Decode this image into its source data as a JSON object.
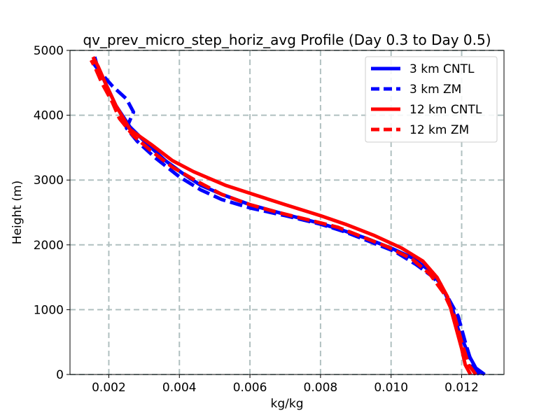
{
  "chart_data": {
    "type": "line",
    "title": "qv_prev_micro_step_horiz_avg Profile (Day 0.3 to Day 0.5)",
    "xlabel": "kg/kg",
    "ylabel": "Height (m)",
    "xlim": [
      0.0009,
      0.0132
    ],
    "ylim": [
      0,
      5000
    ],
    "xticks": [
      0.002,
      0.004,
      0.006,
      0.008,
      0.01,
      0.012
    ],
    "xtick_labels": [
      "0.002",
      "0.004",
      "0.006",
      "0.008",
      "0.010",
      "0.012"
    ],
    "yticks": [
      0,
      1000,
      2000,
      3000,
      4000,
      5000
    ],
    "ytick_labels": [
      "0",
      "1000",
      "2000",
      "3000",
      "4000",
      "5000"
    ],
    "grid": true,
    "legend_position": "top-right",
    "series": [
      {
        "name": "3 km CNTL",
        "color": "#0000ff",
        "dash": "solid",
        "points": [
          [
            0.01265,
            0
          ],
          [
            0.0124,
            100
          ],
          [
            0.0122,
            300
          ],
          [
            0.0119,
            700
          ],
          [
            0.01175,
            1000
          ],
          [
            0.0114,
            1400
          ],
          [
            0.0111,
            1600
          ],
          [
            0.0106,
            1800
          ],
          [
            0.01,
            1950
          ],
          [
            0.0093,
            2100
          ],
          [
            0.0086,
            2230
          ],
          [
            0.008,
            2330
          ],
          [
            0.007,
            2470
          ],
          [
            0.006,
            2620
          ],
          [
            0.0052,
            2780
          ],
          [
            0.0046,
            2920
          ],
          [
            0.0041,
            3100
          ],
          [
            0.0036,
            3300
          ],
          [
            0.0031,
            3550
          ],
          [
            0.0026,
            3820
          ],
          [
            0.0022,
            4150
          ],
          [
            0.0019,
            4500
          ],
          [
            0.00165,
            4800
          ],
          [
            0.0016,
            4900
          ]
        ]
      },
      {
        "name": "3 km ZM",
        "color": "#0000ff",
        "dash": "dashed",
        "points": [
          [
            0.0125,
            0
          ],
          [
            0.0123,
            150
          ],
          [
            0.0121,
            500
          ],
          [
            0.0119,
            900
          ],
          [
            0.0116,
            1200
          ],
          [
            0.0112,
            1500
          ],
          [
            0.0107,
            1700
          ],
          [
            0.0101,
            1900
          ],
          [
            0.0094,
            2050
          ],
          [
            0.0087,
            2200
          ],
          [
            0.008,
            2320
          ],
          [
            0.007,
            2450
          ],
          [
            0.006,
            2570
          ],
          [
            0.0052,
            2700
          ],
          [
            0.0046,
            2850
          ],
          [
            0.004,
            3050
          ],
          [
            0.0033,
            3350
          ],
          [
            0.0028,
            3600
          ],
          [
            0.0025,
            3800
          ],
          [
            0.0027,
            4050
          ],
          [
            0.0025,
            4250
          ],
          [
            0.0021,
            4450
          ],
          [
            0.0017,
            4700
          ],
          [
            0.0015,
            4850
          ]
        ]
      },
      {
        "name": "12 km CNTL",
        "color": "#ff0000",
        "dash": "solid",
        "points": [
          [
            0.01225,
            0
          ],
          [
            0.0121,
            150
          ],
          [
            0.012,
            400
          ],
          [
            0.0118,
            800
          ],
          [
            0.0116,
            1200
          ],
          [
            0.0113,
            1500
          ],
          [
            0.0109,
            1750
          ],
          [
            0.0103,
            1950
          ],
          [
            0.0095,
            2150
          ],
          [
            0.0087,
            2320
          ],
          [
            0.008,
            2450
          ],
          [
            0.007,
            2620
          ],
          [
            0.0062,
            2760
          ],
          [
            0.0053,
            2920
          ],
          [
            0.0044,
            3130
          ],
          [
            0.0038,
            3300
          ],
          [
            0.0032,
            3550
          ],
          [
            0.0026,
            3780
          ],
          [
            0.0022,
            4150
          ],
          [
            0.0019,
            4500
          ],
          [
            0.0017,
            4750
          ],
          [
            0.00155,
            4900
          ]
        ]
      },
      {
        "name": "12 km ZM",
        "color": "#ff0000",
        "dash": "dashed",
        "points": [
          [
            0.0124,
            0
          ],
          [
            0.0122,
            150
          ],
          [
            0.012,
            500
          ],
          [
            0.0118,
            900
          ],
          [
            0.0115,
            1250
          ],
          [
            0.0111,
            1550
          ],
          [
            0.0106,
            1780
          ],
          [
            0.0099,
            1970
          ],
          [
            0.0092,
            2120
          ],
          [
            0.0085,
            2270
          ],
          [
            0.0077,
            2380
          ],
          [
            0.0068,
            2500
          ],
          [
            0.006,
            2620
          ],
          [
            0.0052,
            2780
          ],
          [
            0.0045,
            2980
          ],
          [
            0.0038,
            3200
          ],
          [
            0.0032,
            3450
          ],
          [
            0.0027,
            3680
          ],
          [
            0.0023,
            3950
          ],
          [
            0.0021,
            4200
          ],
          [
            0.0018,
            4500
          ],
          [
            0.0016,
            4750
          ],
          [
            0.0015,
            4850
          ]
        ]
      }
    ]
  }
}
